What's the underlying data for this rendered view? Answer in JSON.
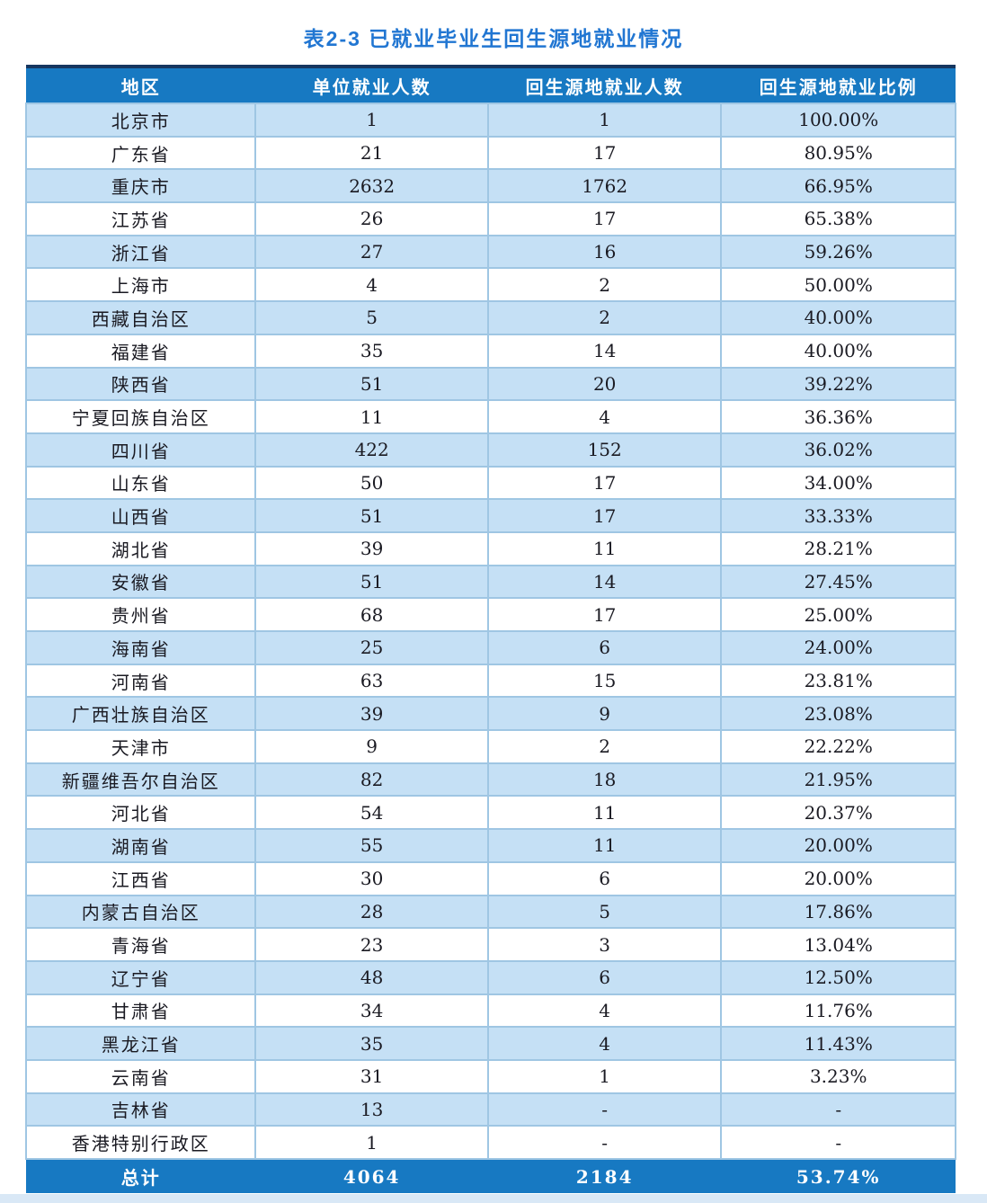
{
  "title": "表2-3 已就业毕业生回生源地就业情况",
  "table": {
    "headers": [
      "地区",
      "单位就业人数",
      "回生源地就业人数",
      "回生源地就业比例"
    ],
    "rows": [
      [
        "北京市",
        "1",
        "1",
        "100.00%"
      ],
      [
        "广东省",
        "21",
        "17",
        "80.95%"
      ],
      [
        "重庆市",
        "2632",
        "1762",
        "66.95%"
      ],
      [
        "江苏省",
        "26",
        "17",
        "65.38%"
      ],
      [
        "浙江省",
        "27",
        "16",
        "59.26%"
      ],
      [
        "上海市",
        "4",
        "2",
        "50.00%"
      ],
      [
        "西藏自治区",
        "5",
        "2",
        "40.00%"
      ],
      [
        "福建省",
        "35",
        "14",
        "40.00%"
      ],
      [
        "陕西省",
        "51",
        "20",
        "39.22%"
      ],
      [
        "宁夏回族自治区",
        "11",
        "4",
        "36.36%"
      ],
      [
        "四川省",
        "422",
        "152",
        "36.02%"
      ],
      [
        "山东省",
        "50",
        "17",
        "34.00%"
      ],
      [
        "山西省",
        "51",
        "17",
        "33.33%"
      ],
      [
        "湖北省",
        "39",
        "11",
        "28.21%"
      ],
      [
        "安徽省",
        "51",
        "14",
        "27.45%"
      ],
      [
        "贵州省",
        "68",
        "17",
        "25.00%"
      ],
      [
        "海南省",
        "25",
        "6",
        "24.00%"
      ],
      [
        "河南省",
        "63",
        "15",
        "23.81%"
      ],
      [
        "广西壮族自治区",
        "39",
        "9",
        "23.08%"
      ],
      [
        "天津市",
        "9",
        "2",
        "22.22%"
      ],
      [
        "新疆维吾尔自治区",
        "82",
        "18",
        "21.95%"
      ],
      [
        "河北省",
        "54",
        "11",
        "20.37%"
      ],
      [
        "湖南省",
        "55",
        "11",
        "20.00%"
      ],
      [
        "江西省",
        "30",
        "6",
        "20.00%"
      ],
      [
        "内蒙古自治区",
        "28",
        "5",
        "17.86%"
      ],
      [
        "青海省",
        "23",
        "3",
        "13.04%"
      ],
      [
        "辽宁省",
        "48",
        "6",
        "12.50%"
      ],
      [
        "甘肃省",
        "34",
        "4",
        "11.76%"
      ],
      [
        "黑龙江省",
        "35",
        "4",
        "11.43%"
      ],
      [
        "云南省",
        "31",
        "1",
        "3.23%"
      ],
      [
        "吉林省",
        "13",
        "-",
        "-"
      ],
      [
        "香港特别行政区",
        "1",
        "-",
        "-"
      ]
    ],
    "total": [
      "总计",
      "4064",
      "2184",
      "53.74%"
    ]
  },
  "colors": {
    "header_bg": "#1779c2",
    "total_row_bg": "#1779c2",
    "row_alt_bg": "#c5e0f5",
    "row_bg": "#ffffff",
    "border": "#9fc6e3",
    "top_border": "#16365f",
    "title_color": "#2176d2",
    "cell_text": "#1a1a22",
    "bottom_strip": "#d9e8f6"
  }
}
